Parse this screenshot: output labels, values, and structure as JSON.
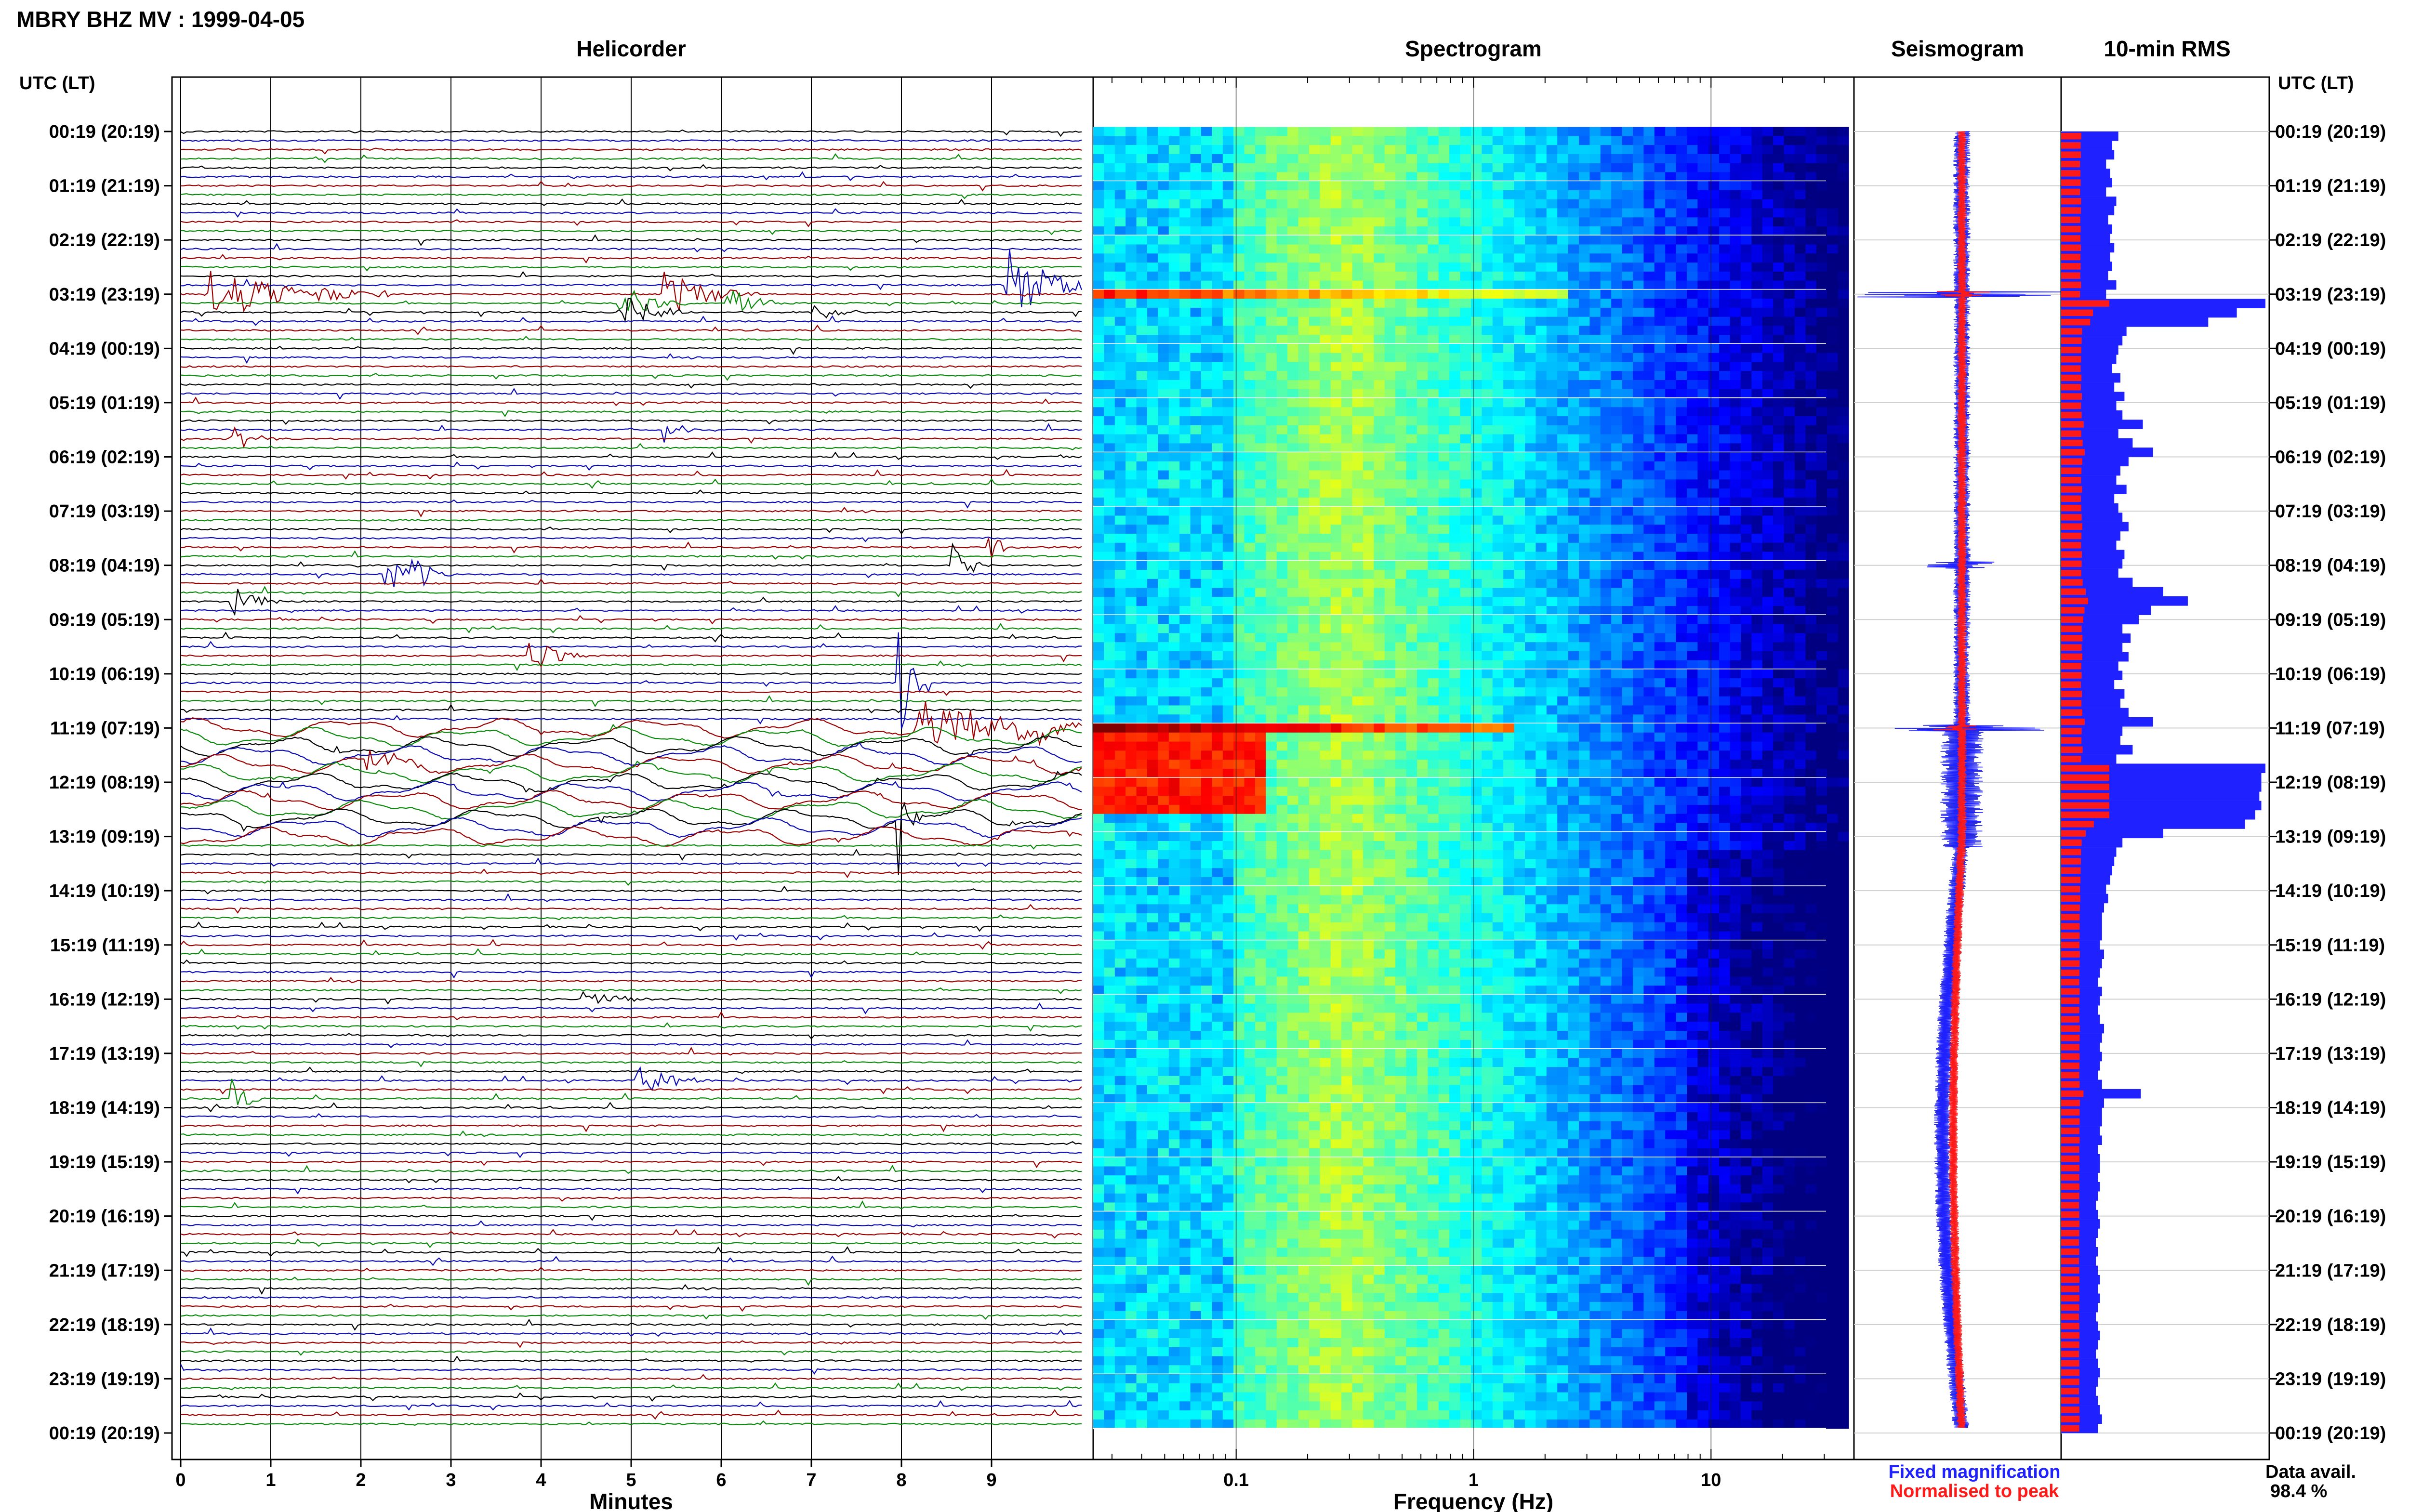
{
  "header": {
    "title": "MBRY BHZ MV : 1999-04-05"
  },
  "panels": {
    "helicorder": {
      "title": "Helicorder",
      "xlabel": "Minutes"
    },
    "spectrogram": {
      "title": "Spectrogram",
      "xlabel": "Frequency (Hz)"
    },
    "seismogram": {
      "title": "Seismogram"
    },
    "rms": {
      "title": "10-min RMS"
    }
  },
  "axis": {
    "left_header": "UTC (LT)",
    "right_header": "UTC (LT)"
  },
  "legend": {
    "fixed": "Fixed magnification",
    "normalised": "Normalised to peak"
  },
  "availability": {
    "label": "Data avail.",
    "value": "98.4 %"
  },
  "colors": {
    "blue": "#0a0ab4",
    "red": "#9a0000",
    "green": "#0a8a0a",
    "black": "#000000",
    "seis_blue": "#1f22ff",
    "seis_red": "#ff1a1a"
  },
  "chart_data": [
    {
      "type": "line",
      "name": "helicorder",
      "title": "Helicorder",
      "xlabel": "Minutes",
      "xlim": [
        0,
        10
      ],
      "x_ticks": [
        "0",
        "1",
        "2",
        "3",
        "4",
        "5",
        "6",
        "7",
        "8",
        "9"
      ],
      "y_ticks": [
        "00:19 (20:19)",
        "01:19 (21:19)",
        "02:19 (22:19)",
        "03:19 (23:19)",
        "04:19 (00:19)",
        "05:19 (01:19)",
        "06:19 (02:19)",
        "07:19 (03:19)",
        "08:19 (04:19)",
        "09:19 (05:19)",
        "10:19 (06:19)",
        "11:19 (07:19)",
        "12:19 (08:19)",
        "13:19 (09:19)",
        "14:19 (10:19)",
        "15:19 (11:19)",
        "16:19 (12:19)",
        "17:19 (13:19)",
        "18:19 (14:19)",
        "19:19 (15:19)",
        "20:19 (16:19)",
        "21:19 (17:19)",
        "22:19 (18:19)",
        "23:19 (19:19)",
        "00:19 (20:19)"
      ],
      "trace_colors": [
        "black",
        "blue",
        "red",
        "green"
      ],
      "events": [
        {
          "hour": 2.9,
          "minute": 9.2,
          "amp": 2.2,
          "color": "red",
          "dur": 0.9
        },
        {
          "hour": 3.0,
          "minute": 0.3,
          "amp": 1.4,
          "color": "blue",
          "dur": 2.0
        },
        {
          "hour": 3.05,
          "minute": 5.4,
          "amp": 1.2,
          "color": "blue",
          "dur": 1.0
        },
        {
          "hour": 3.1,
          "minute": 6.1,
          "amp": 1.1,
          "color": "green",
          "dur": 0.6
        },
        {
          "hour": 3.25,
          "minute": 4.9,
          "amp": 1.0,
          "color": "black",
          "dur": 0.7
        },
        {
          "hour": 3.35,
          "minute": 7.0,
          "amp": 0.5,
          "color": "black",
          "dur": 0.6
        },
        {
          "hour": 5.6,
          "minute": 0.6,
          "amp": 0.6,
          "color": "blue",
          "dur": 0.5
        },
        {
          "hour": 5.5,
          "minute": 5.4,
          "amp": 0.6,
          "color": "red",
          "dur": 0.4
        },
        {
          "hour": 8.1,
          "minute": 2.3,
          "amp": 1.0,
          "color": "black",
          "dur": 0.4
        },
        {
          "hour": 8.2,
          "minute": 2.6,
          "amp": 1.0,
          "color": "red",
          "dur": 0.4
        },
        {
          "hour": 8.0,
          "minute": 8.6,
          "amp": 0.9,
          "color": "green",
          "dur": 0.4
        },
        {
          "hour": 7.7,
          "minute": 9.0,
          "amp": 0.7,
          "color": "black",
          "dur": 0.3
        },
        {
          "hour": 8.7,
          "minute": 0.6,
          "amp": 0.8,
          "color": "black",
          "dur": 0.5
        },
        {
          "hour": 9.7,
          "minute": 3.9,
          "amp": 0.9,
          "color": "blue",
          "dur": 0.6
        },
        {
          "hour": 10.2,
          "minute": 8.0,
          "amp": 4.0,
          "color": "blue",
          "dur": 0.3
        },
        {
          "hour": 11.0,
          "minute": 8.2,
          "amp": 1.6,
          "color": "blue",
          "dur": 1.9
        },
        {
          "hour": 11.6,
          "minute": 2.1,
          "amp": 0.6,
          "color": "green",
          "dur": 0.8
        },
        {
          "hour": 12.7,
          "minute": 8.0,
          "amp": 2.5,
          "color": "blue",
          "dur": 0.2
        },
        {
          "hour": 16.0,
          "minute": 4.5,
          "amp": 0.4,
          "color": "blue",
          "dur": 0.8
        },
        {
          "hour": 17.5,
          "minute": 5.1,
          "amp": 0.9,
          "color": "red",
          "dur": 0.8
        },
        {
          "hour": 17.9,
          "minute": 0.6,
          "amp": 1.0,
          "color": "green",
          "dur": 0.3
        }
      ],
      "wave_hours": [
        10.9,
        13.0
      ]
    },
    {
      "type": "heatmap",
      "name": "spectrogram",
      "title": "Spectrogram",
      "xlabel": "Frequency (Hz)",
      "x_scale": "log",
      "xlim": [
        0.025,
        40
      ],
      "x_ticks": [
        "0.1",
        "1",
        "10"
      ],
      "colormap": "jet",
      "hot_bands": [
        {
          "hour": 3.0,
          "fmax": 2.5,
          "level": 0.85
        },
        {
          "hour": 11.0,
          "fmax": 1.5,
          "level": 1.0
        },
        {
          "hour_from": 11.1,
          "hour_to": 12.6,
          "fmax": 0.13,
          "level": 0.9
        }
      ]
    },
    {
      "type": "line",
      "name": "seismogram",
      "title": "Seismogram",
      "series": [
        {
          "name": "Fixed magnification",
          "color": "blue"
        },
        {
          "name": "Normalised to peak",
          "color": "red"
        }
      ],
      "spikes_at_hour": [
        3.0,
        8.0,
        11.0
      ]
    },
    {
      "type": "bar",
      "name": "rms",
      "title": "10-min RMS",
      "orientation": "horizontal",
      "interval_minutes": 10,
      "rms_rel": [
        0.28,
        0.25,
        0.26,
        0.22,
        0.24,
        0.25,
        0.22,
        0.27,
        0.26,
        0.23,
        0.25,
        0.24,
        0.26,
        0.24,
        0.25,
        0.23,
        0.27,
        0.22,
        1.0,
        0.86,
        0.72,
        0.32,
        0.3,
        0.28,
        0.27,
        0.25,
        0.29,
        0.26,
        0.31,
        0.27,
        0.3,
        0.4,
        0.28,
        0.35,
        0.45,
        0.33,
        0.29,
        0.27,
        0.32,
        0.26,
        0.28,
        0.3,
        0.33,
        0.29,
        0.27,
        0.31,
        0.3,
        0.28,
        0.35,
        0.5,
        0.62,
        0.44,
        0.38,
        0.3,
        0.34,
        0.3,
        0.33,
        0.28,
        0.3,
        0.26,
        0.31,
        0.29,
        0.33,
        0.45,
        0.3,
        0.29,
        0.35,
        0.27,
        1.0,
        0.98,
        0.98,
        0.97,
        0.98,
        0.95,
        0.9,
        0.5,
        0.3,
        0.27,
        0.26,
        0.25,
        0.24,
        0.22,
        0.23,
        0.21,
        0.2,
        0.2,
        0.2,
        0.19,
        0.21,
        0.2,
        0.19,
        0.18,
        0.2,
        0.19,
        0.18,
        0.19,
        0.21,
        0.2,
        0.19,
        0.2,
        0.19,
        0.18,
        0.2,
        0.39,
        0.21,
        0.2,
        0.2,
        0.19,
        0.2,
        0.18,
        0.19,
        0.19,
        0.18,
        0.19,
        0.18,
        0.17,
        0.18,
        0.19,
        0.18,
        0.17,
        0.18,
        0.17,
        0.18,
        0.19,
        0.18,
        0.19,
        0.18,
        0.17,
        0.18,
        0.19,
        0.18,
        0.17,
        0.18,
        0.19,
        0.18,
        0.17,
        0.18,
        0.19,
        0.2,
        0.18
      ]
    }
  ]
}
